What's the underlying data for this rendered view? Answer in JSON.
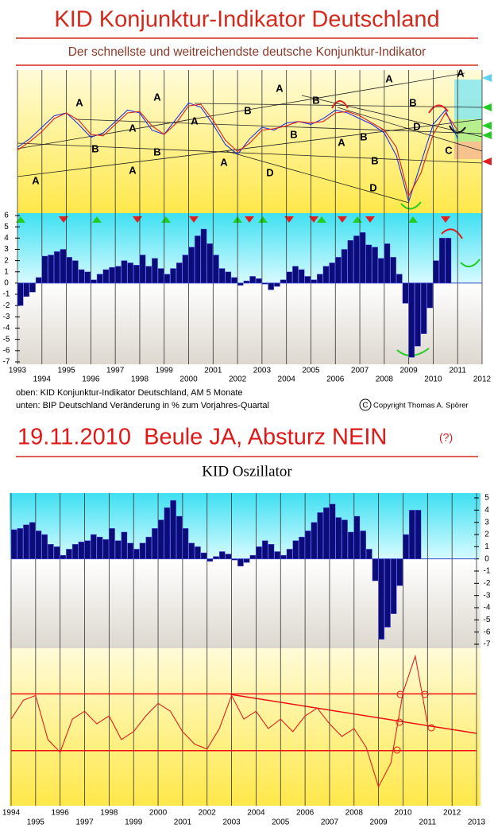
{
  "header": {
    "title": "KID Konjunktur-Indikator Deutschland",
    "subtitle": "Der schnellste und weitreichendste deutsche Konjunktur-Indikator"
  },
  "notes": [
    "oben: KID Konjunktur-Indikator Deutschland, AM 5 Monate",
    "unten: BIP Deutschland Veränderung in % zum Vorjahres-Quartal"
  ],
  "copyright_symbol": "C",
  "copyright": "Copyright Thomas A. Spörer",
  "headline": "19.11.2010  Beule JA, Absturz NEIN",
  "headline_note": "(?)",
  "oscillator_title": "KID Oszillator",
  "chart_data": [
    {
      "type": "line",
      "x": [
        1993,
        1993.5,
        1994,
        1994.5,
        1995,
        1995.5,
        1996,
        1996.5,
        1997,
        1997.5,
        1998,
        1998.5,
        1999,
        1999.5,
        2000,
        2000.5,
        2001,
        2001.5,
        2002,
        2002.5,
        2003,
        2003.5,
        2004,
        2004.5,
        2005,
        2005.5,
        2006,
        2006.5,
        2007,
        2007.5,
        2008,
        2008.5,
        2009,
        2009.5,
        2010,
        2010.5,
        2011
      ],
      "series": [
        {
          "name": "KID",
          "color": "#2233dd",
          "values": [
            46,
            52,
            60,
            68,
            70,
            62,
            53,
            56,
            64,
            72,
            70,
            58,
            55,
            66,
            77,
            74,
            62,
            48,
            41,
            52,
            60,
            58,
            63,
            64,
            62,
            66,
            72,
            70,
            66,
            62,
            56,
            40,
            8,
            35,
            62,
            72,
            52
          ]
        },
        {
          "name": "AM",
          "color": "#dd2222",
          "values": [
            44,
            50,
            57,
            66,
            70,
            65,
            55,
            54,
            62,
            70,
            71,
            61,
            55,
            63,
            75,
            76,
            65,
            51,
            43,
            49,
            58,
            59,
            61,
            64,
            63,
            64,
            70,
            71,
            68,
            63,
            58,
            46,
            12,
            28,
            55,
            70,
            58
          ]
        }
      ],
      "xlim": [
        1993,
        2012
      ],
      "ylim": [
        0,
        100
      ],
      "xticks": [
        1993,
        1994,
        1995,
        1996,
        1997,
        1998,
        1999,
        2000,
        2001,
        2002,
        2003,
        2004,
        2005,
        2006,
        2007,
        2008,
        2009,
        2010,
        2011,
        2012
      ],
      "annotations": [
        "A",
        "A",
        "A",
        "A",
        "A",
        "A",
        "A",
        "A",
        "A",
        "A",
        "A",
        "B",
        "B",
        "B",
        "B",
        "B",
        "B",
        "B",
        "B",
        "C",
        "D",
        "D",
        "D"
      ]
    },
    {
      "type": "bar",
      "color": "#0c0c78",
      "x": [
        1993,
        1993.25,
        1993.5,
        1993.75,
        1994,
        1994.25,
        1994.5,
        1994.75,
        1995,
        1995.25,
        1995.5,
        1995.75,
        1996,
        1996.25,
        1996.5,
        1996.75,
        1997,
        1997.25,
        1997.5,
        1997.75,
        1998,
        1998.25,
        1998.5,
        1998.75,
        1999,
        1999.25,
        1999.5,
        1999.75,
        2000,
        2000.25,
        2000.5,
        2000.75,
        2001,
        2001.25,
        2001.5,
        2001.75,
        2002,
        2002.25,
        2002.5,
        2002.75,
        2003,
        2003.25,
        2003.5,
        2003.75,
        2004,
        2004.25,
        2004.5,
        2004.75,
        2005,
        2005.25,
        2005.5,
        2005.75,
        2006,
        2006.25,
        2006.5,
        2006.75,
        2007,
        2007.25,
        2007.5,
        2007.75,
        2008,
        2008.25,
        2008.5,
        2008.75,
        2009,
        2009.25,
        2009.5,
        2009.75,
        2010,
        2010.25,
        2010.5
      ],
      "values": [
        -2.0,
        -1.2,
        -0.8,
        0.5,
        2.4,
        2.5,
        2.8,
        3.0,
        2.3,
        2.0,
        1.2,
        1.0,
        0.3,
        0.8,
        1.2,
        1.4,
        1.5,
        2.0,
        1.8,
        1.6,
        2.5,
        1.5,
        2.2,
        1.3,
        0.8,
        1.3,
        1.8,
        2.5,
        3.2,
        4.2,
        4.8,
        3.5,
        2.5,
        1.3,
        1.0,
        0.5,
        -0.2,
        0.2,
        0.6,
        0.4,
        -0.1,
        -0.6,
        -0.3,
        0.3,
        1.0,
        1.5,
        1.2,
        0.6,
        0.3,
        0.8,
        1.5,
        1.8,
        2.3,
        3.0,
        3.8,
        4.2,
        4.5,
        3.4,
        3.2,
        2.2,
        3.5,
        2.3,
        0.8,
        -1.8,
        -6.6,
        -5.6,
        -4.5,
        -2.2,
        2.0,
        4.0,
        4.0
      ],
      "xlim": [
        1993,
        2012
      ],
      "ylim": [
        -7,
        6
      ],
      "xticks": [
        1993,
        1994,
        1995,
        1996,
        1997,
        1998,
        1999,
        2000,
        2001,
        2002,
        2003,
        2004,
        2005,
        2006,
        2007,
        2008,
        2009,
        2010,
        2011,
        2012
      ],
      "yticks": [
        6,
        5,
        4,
        3,
        2,
        1,
        0,
        -1,
        -2,
        -3,
        -4,
        -5,
        -6,
        -7
      ]
    },
    {
      "type": "bar",
      "color": "#0c0c78",
      "x": [
        1994,
        1994.25,
        1994.5,
        1994.75,
        1995,
        1995.25,
        1995.5,
        1995.75,
        1996,
        1996.25,
        1996.5,
        1996.75,
        1997,
        1997.25,
        1997.5,
        1997.75,
        1998,
        1998.25,
        1998.5,
        1998.75,
        1999,
        1999.25,
        1999.5,
        1999.75,
        2000,
        2000.25,
        2000.5,
        2000.75,
        2001,
        2001.25,
        2001.5,
        2001.75,
        2002,
        2002.25,
        2002.5,
        2002.75,
        2003,
        2003.25,
        2003.5,
        2003.75,
        2004,
        2004.25,
        2004.5,
        2004.75,
        2005,
        2005.25,
        2005.5,
        2005.75,
        2006,
        2006.25,
        2006.5,
        2006.75,
        2007,
        2007.25,
        2007.5,
        2007.75,
        2008,
        2008.25,
        2008.5,
        2008.75,
        2009,
        2009.25,
        2009.5,
        2009.75,
        2010,
        2010.25,
        2010.5
      ],
      "values": [
        2.4,
        2.5,
        2.8,
        3.0,
        2.3,
        2.0,
        1.2,
        1.0,
        0.3,
        0.8,
        1.2,
        1.4,
        1.5,
        2.0,
        1.8,
        1.6,
        2.5,
        1.5,
        2.2,
        1.3,
        0.8,
        1.3,
        1.8,
        2.5,
        3.2,
        4.2,
        4.8,
        3.5,
        2.5,
        1.3,
        1.0,
        0.5,
        -0.2,
        0.2,
        0.6,
        0.4,
        -0.1,
        -0.6,
        -0.3,
        0.3,
        1.0,
        1.5,
        1.2,
        0.6,
        0.3,
        0.8,
        1.5,
        1.8,
        2.3,
        3.0,
        3.8,
        4.2,
        4.5,
        3.4,
        3.2,
        2.2,
        3.5,
        2.3,
        0.8,
        -1.8,
        -6.6,
        -5.6,
        -4.5,
        -2.2,
        2.0,
        4.0,
        4.0
      ],
      "xlim": [
        1994,
        2013
      ],
      "ylim": [
        -7,
        5
      ],
      "xticks": [
        1994,
        1995,
        1996,
        1997,
        1998,
        1999,
        2000,
        2001,
        2002,
        2003,
        2004,
        2005,
        2006,
        2007,
        2008,
        2009,
        2010,
        2011,
        2012,
        2013
      ],
      "yticks": [
        5,
        4,
        3,
        2,
        1,
        0,
        -1,
        -2,
        -3,
        -4,
        -5,
        -6,
        -7
      ]
    },
    {
      "type": "line",
      "x": [
        1994,
        1994.5,
        1995,
        1995.5,
        1996,
        1996.5,
        1997,
        1997.5,
        1998,
        1998.5,
        1999,
        1999.5,
        2000,
        2000.5,
        2001,
        2001.5,
        2002,
        2002.5,
        2003,
        2003.5,
        2004,
        2004.5,
        2005,
        2005.5,
        2006,
        2006.5,
        2007,
        2007.5,
        2008,
        2008.5,
        2009,
        2009.5,
        2010,
        2010.5,
        2011
      ],
      "series": [
        {
          "name": "KID Oszillator",
          "color": "#dd2222",
          "values": [
            55,
            67,
            70,
            42,
            34,
            55,
            60,
            52,
            57,
            42,
            47,
            57,
            65,
            60,
            47,
            39,
            36,
            49,
            70,
            55,
            60,
            49,
            55,
            47,
            57,
            62,
            52,
            44,
            49,
            37,
            12,
            27,
            72,
            95,
            52
          ]
        }
      ],
      "reference_lines": [
        71,
        35
      ],
      "reference_color": "#ee1111",
      "xlim": [
        1994,
        2013
      ],
      "ylim": [
        0,
        100
      ],
      "xticks": [
        1994,
        1995,
        1996,
        1997,
        1998,
        1999,
        2000,
        2001,
        2002,
        2003,
        2004,
        2005,
        2006,
        2007,
        2008,
        2009,
        2010,
        2011,
        2012,
        2013
      ]
    }
  ]
}
